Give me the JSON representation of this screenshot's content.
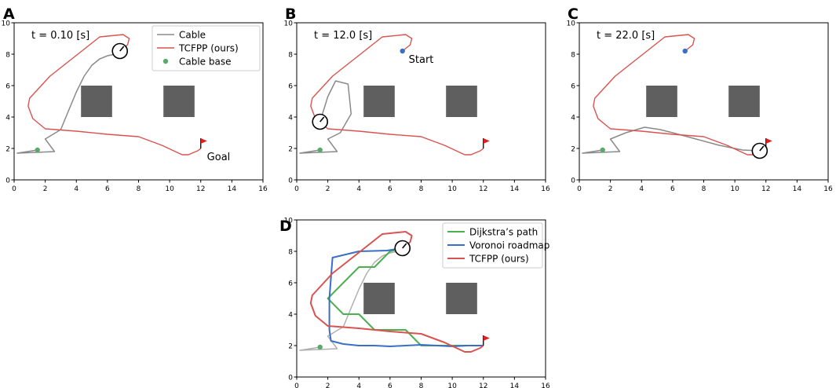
{
  "figure": {
    "panels": [
      {
        "letter": "A",
        "time_label": "t = 0.10 [s]"
      },
      {
        "letter": "B",
        "time_label": "t = 12.0 [s]"
      },
      {
        "letter": "C",
        "time_label": "t = 22.0 [s]"
      },
      {
        "letter": "D",
        "time_label": ""
      }
    ],
    "annotations": {
      "goal": "Goal",
      "start": "Start"
    }
  },
  "chart_data": [
    {
      "panel": "A",
      "type": "line",
      "title": "t = 0.10 [s]",
      "xlabel": "",
      "ylabel": "",
      "xlim": [
        0,
        16
      ],
      "ylim": [
        0,
        10
      ],
      "xticks": [
        0,
        2,
        4,
        6,
        8,
        10,
        12,
        14,
        16
      ],
      "yticks": [
        0,
        2,
        4,
        6,
        8,
        10
      ],
      "legend": {
        "placement": "top-right",
        "entries": [
          "Cable",
          "TCFPP (ours)",
          "Cable base"
        ]
      },
      "series": [
        {
          "name": "Cable",
          "color": "#8a8a8a",
          "style": "line",
          "x": [
            1.5,
            0.2,
            2.6,
            2.0,
            3.0,
            3.5,
            4.0,
            4.5,
            5.0,
            5.5,
            6.0,
            6.5,
            7.0,
            6.8
          ],
          "y": [
            1.9,
            1.7,
            1.8,
            2.6,
            3.2,
            4.4,
            5.6,
            6.6,
            7.3,
            7.7,
            7.9,
            8.0,
            8.1,
            8.2
          ]
        },
        {
          "name": "TCFPP (ours)",
          "color": "#d9534f",
          "style": "line",
          "x": [
            6.8,
            7.3,
            7.4,
            7.0,
            5.5,
            2.3,
            1.0,
            0.9,
            1.2,
            2.0,
            4.0,
            6.0,
            8.0,
            9.5,
            10.8,
            11.2,
            11.8,
            12.0
          ],
          "y": [
            8.2,
            8.6,
            9.0,
            9.25,
            9.1,
            6.6,
            5.2,
            4.7,
            3.9,
            3.25,
            3.1,
            2.9,
            2.75,
            2.2,
            1.6,
            1.6,
            1.85,
            2.0
          ]
        },
        {
          "name": "Cable base",
          "color": "#5aa86a",
          "style": "marker",
          "x": [
            1.5
          ],
          "y": [
            1.9
          ]
        }
      ],
      "robot": {
        "x": 6.8,
        "y": 8.2
      },
      "flag": {
        "x": 12.0,
        "y": 2.0
      },
      "obstacles": [
        {
          "x0": 4.3,
          "x1": 6.3,
          "y0": 4.0,
          "y1": 6.0
        },
        {
          "x0": 9.6,
          "x1": 11.6,
          "y0": 4.0,
          "y1": 6.0
        }
      ],
      "annotations": [
        {
          "text": "Goal",
          "x": 12.4,
          "y": 1.5
        }
      ]
    },
    {
      "panel": "B",
      "type": "line",
      "title": "t = 12.0 [s]",
      "xlabel": "",
      "ylabel": "",
      "xlim": [
        0,
        16
      ],
      "ylim": [
        0,
        10
      ],
      "xticks": [
        0,
        2,
        4,
        6,
        8,
        10,
        12,
        14,
        16
      ],
      "yticks": [
        0,
        2,
        4,
        6,
        8,
        10
      ],
      "series": [
        {
          "name": "Cable",
          "color": "#8a8a8a",
          "style": "line",
          "x": [
            1.5,
            0.2,
            2.6,
            2.0,
            2.8,
            3.5,
            3.3,
            2.5,
            2.0,
            1.5
          ],
          "y": [
            1.9,
            1.7,
            1.8,
            2.6,
            3.0,
            4.2,
            6.1,
            6.3,
            5.3,
            3.7
          ]
        },
        {
          "name": "TCFPP (ours)",
          "color": "#d9534f",
          "style": "line",
          "x": [
            6.8,
            7.3,
            7.4,
            7.0,
            5.5,
            2.3,
            1.0,
            0.9,
            1.2,
            2.0,
            4.0,
            6.0,
            8.0,
            9.5,
            10.8,
            11.2,
            11.8,
            12.0
          ],
          "y": [
            8.2,
            8.6,
            9.0,
            9.25,
            9.1,
            6.6,
            5.2,
            4.7,
            3.9,
            3.25,
            3.1,
            2.9,
            2.75,
            2.2,
            1.6,
            1.6,
            1.85,
            2.0
          ]
        },
        {
          "name": "Cable base",
          "color": "#5aa86a",
          "style": "marker",
          "x": [
            1.5
          ],
          "y": [
            1.9
          ]
        },
        {
          "name": "Start",
          "color": "#3a6fc4",
          "style": "marker",
          "x": [
            6.8
          ],
          "y": [
            8.2
          ]
        }
      ],
      "robot": {
        "x": 1.5,
        "y": 3.7
      },
      "flag": {
        "x": 12.0,
        "y": 2.0
      },
      "obstacles": [
        {
          "x0": 4.3,
          "x1": 6.3,
          "y0": 4.0,
          "y1": 6.0
        },
        {
          "x0": 9.6,
          "x1": 11.6,
          "y0": 4.0,
          "y1": 6.0
        }
      ],
      "annotations": [
        {
          "text": "Start",
          "x": 7.2,
          "y": 7.7
        }
      ]
    },
    {
      "panel": "C",
      "type": "line",
      "title": "t = 22.0 [s]",
      "xlabel": "",
      "ylabel": "",
      "xlim": [
        0,
        16
      ],
      "ylim": [
        0,
        10
      ],
      "xticks": [
        0,
        2,
        4,
        6,
        8,
        10,
        12,
        14,
        16
      ],
      "yticks": [
        0,
        2,
        4,
        6,
        8,
        10
      ],
      "series": [
        {
          "name": "Cable",
          "color": "#8a8a8a",
          "style": "line",
          "x": [
            1.5,
            0.2,
            2.6,
            2.0,
            3.0,
            4.2,
            5.2,
            6.0,
            7.5,
            9.0,
            10.5,
            11.6
          ],
          "y": [
            1.9,
            1.7,
            1.8,
            2.6,
            3.0,
            3.35,
            3.2,
            3.0,
            2.6,
            2.2,
            1.9,
            1.85
          ]
        },
        {
          "name": "TCFPP (ours)",
          "color": "#d9534f",
          "style": "line",
          "x": [
            6.8,
            7.3,
            7.4,
            7.0,
            5.5,
            2.3,
            1.0,
            0.9,
            1.2,
            2.0,
            4.0,
            6.0,
            8.0,
            9.5,
            10.8,
            11.2,
            11.8,
            12.0
          ],
          "y": [
            8.2,
            8.6,
            9.0,
            9.25,
            9.1,
            6.6,
            5.2,
            4.7,
            3.9,
            3.25,
            3.1,
            2.9,
            2.75,
            2.2,
            1.6,
            1.6,
            1.85,
            2.0
          ]
        },
        {
          "name": "Cable base",
          "color": "#5aa86a",
          "style": "marker",
          "x": [
            1.5
          ],
          "y": [
            1.9
          ]
        },
        {
          "name": "Start",
          "color": "#3a6fc4",
          "style": "marker",
          "x": [
            6.8
          ],
          "y": [
            8.2
          ]
        }
      ],
      "robot": {
        "x": 11.6,
        "y": 1.85
      },
      "flag": {
        "x": 12.0,
        "y": 2.0
      },
      "obstacles": [
        {
          "x0": 4.3,
          "x1": 6.3,
          "y0": 4.0,
          "y1": 6.0
        },
        {
          "x0": 9.6,
          "x1": 11.6,
          "y0": 4.0,
          "y1": 6.0
        }
      ],
      "annotations": []
    },
    {
      "panel": "D",
      "type": "line",
      "title": "",
      "xlabel": "",
      "ylabel": "",
      "xlim": [
        0,
        16
      ],
      "ylim": [
        0,
        10
      ],
      "xticks": [
        0,
        2,
        4,
        6,
        8,
        10,
        12,
        14,
        16
      ],
      "yticks": [
        0,
        2,
        4,
        6,
        8,
        10
      ],
      "legend": {
        "placement": "top-right",
        "entries": [
          "Dijkstra’s path",
          "Voronoi roadmap",
          "TCFPP (ours)"
        ]
      },
      "series": [
        {
          "name": "Cable",
          "color": "#b0b0b0",
          "style": "line",
          "x": [
            1.5,
            0.2,
            2.6,
            2.0,
            3.0,
            3.5,
            4.0,
            4.5,
            5.0,
            5.5,
            6.0,
            6.5,
            7.0,
            6.8
          ],
          "y": [
            1.9,
            1.7,
            1.8,
            2.6,
            3.2,
            4.4,
            5.6,
            6.6,
            7.3,
            7.7,
            7.9,
            8.0,
            8.1,
            8.2
          ]
        },
        {
          "name": "Dijkstra’s path",
          "color": "#4caf50",
          "style": "line",
          "x": [
            6.8,
            6.0,
            5.0,
            4.0,
            3.0,
            2.0,
            3.0,
            4.0,
            5.0,
            7.0,
            8.0,
            9.0,
            10.0,
            11.0,
            12.0
          ],
          "y": [
            8.2,
            8.0,
            7.0,
            7.0,
            6.0,
            5.0,
            4.0,
            4.0,
            3.0,
            3.0,
            2.0,
            2.0,
            2.0,
            2.0,
            2.0
          ]
        },
        {
          "name": "Voronoi roadmap",
          "color": "#3a6fc4",
          "style": "line",
          "x": [
            6.8,
            5.8,
            4.0,
            2.3,
            2.1,
            2.1,
            2.2,
            3.0,
            4.0,
            5.0,
            6.0,
            7.0,
            8.0,
            9.0,
            10.0,
            11.0,
            12.0
          ],
          "y": [
            8.2,
            8.05,
            8.0,
            7.6,
            5.0,
            3.0,
            2.3,
            2.1,
            2.0,
            2.0,
            1.95,
            2.0,
            2.05,
            2.0,
            1.95,
            2.0,
            2.0
          ]
        },
        {
          "name": "TCFPP (ours)",
          "color": "#d9534f",
          "style": "line",
          "x": [
            6.8,
            7.3,
            7.4,
            7.0,
            5.5,
            2.3,
            1.0,
            0.9,
            1.2,
            2.0,
            4.0,
            6.0,
            8.0,
            9.5,
            10.8,
            11.2,
            11.8,
            12.0
          ],
          "y": [
            8.2,
            8.6,
            9.0,
            9.25,
            9.1,
            6.6,
            5.2,
            4.7,
            3.9,
            3.25,
            3.1,
            2.9,
            2.75,
            2.2,
            1.6,
            1.6,
            1.85,
            2.0
          ]
        },
        {
          "name": "Cable base",
          "color": "#5aa86a",
          "style": "marker",
          "x": [
            1.5
          ],
          "y": [
            1.9
          ]
        }
      ],
      "robot": {
        "x": 6.8,
        "y": 8.2
      },
      "flag": {
        "x": 12.0,
        "y": 2.0
      },
      "obstacles": [
        {
          "x0": 4.3,
          "x1": 6.3,
          "y0": 4.0,
          "y1": 6.0
        },
        {
          "x0": 9.6,
          "x1": 11.6,
          "y0": 4.0,
          "y1": 6.0
        }
      ],
      "annotations": []
    }
  ]
}
